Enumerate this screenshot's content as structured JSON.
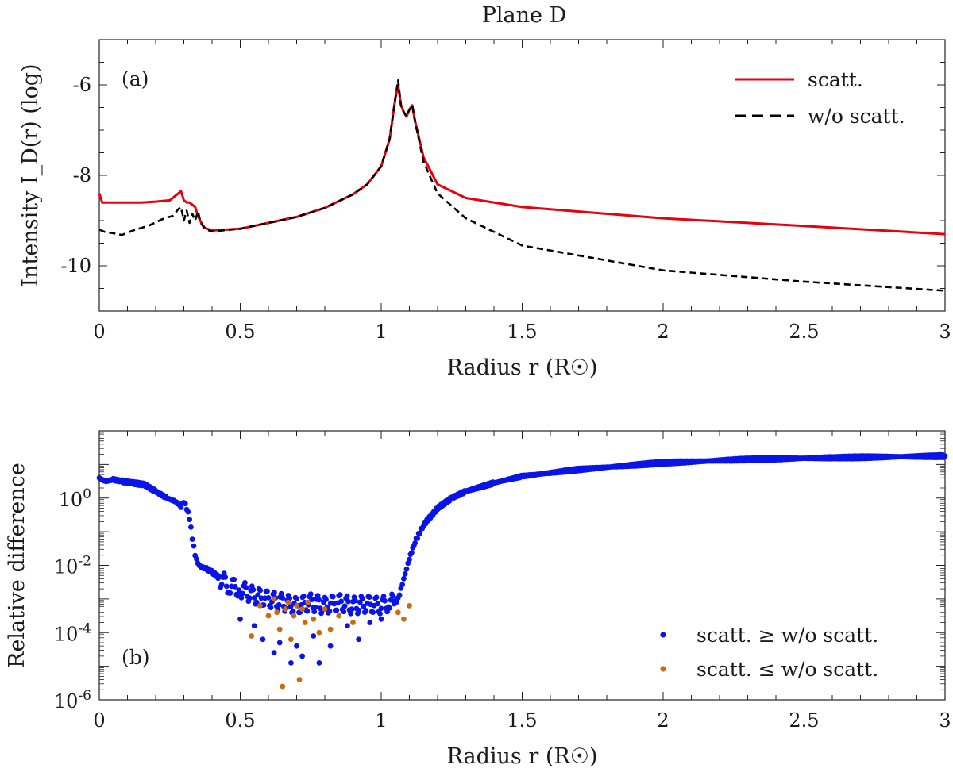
{
  "figure_title": "Plane D",
  "chart_data": [
    {
      "type": "line",
      "panel_label": "(a)",
      "xlabel": "Radius r (R☉)",
      "ylabel": "Intensity I_D(r) (log)",
      "xlim": [
        0,
        3
      ],
      "ylim": [
        -11,
        -5
      ],
      "x_ticks": [
        0,
        0.5,
        1,
        1.5,
        2,
        2.5,
        3
      ],
      "x_tick_labels": [
        "0",
        "0.5",
        "1",
        "1.5",
        "2",
        "2.5",
        "3"
      ],
      "y_ticks": [
        -10,
        -8,
        -6
      ],
      "y_tick_labels": [
        "-10",
        "-8",
        "-6"
      ],
      "legend_position": "top-right",
      "grid": false,
      "series": [
        {
          "name": "scatt.",
          "color": "#e8000b",
          "style": "solid",
          "x": [
            0,
            0.01,
            0.05,
            0.1,
            0.15,
            0.2,
            0.25,
            0.28,
            0.29,
            0.3,
            0.31,
            0.32,
            0.33,
            0.34,
            0.35,
            0.37,
            0.4,
            0.5,
            0.6,
            0.7,
            0.8,
            0.9,
            0.95,
            1.0,
            1.03,
            1.05,
            1.06,
            1.07,
            1.08,
            1.09,
            1.1,
            1.11,
            1.12,
            1.15,
            1.2,
            1.3,
            1.5,
            2.0,
            2.5,
            3.0
          ],
          "y": [
            -8.4,
            -8.6,
            -8.6,
            -8.6,
            -8.6,
            -8.58,
            -8.55,
            -8.4,
            -8.35,
            -8.55,
            -8.6,
            -8.6,
            -8.65,
            -8.7,
            -8.9,
            -9.15,
            -9.22,
            -9.18,
            -9.05,
            -8.92,
            -8.72,
            -8.42,
            -8.2,
            -7.8,
            -7.2,
            -6.3,
            -6.0,
            -6.45,
            -6.6,
            -6.7,
            -6.55,
            -6.45,
            -6.8,
            -7.6,
            -8.2,
            -8.5,
            -8.7,
            -8.95,
            -9.12,
            -9.3
          ]
        },
        {
          "name": "w/o scatt.",
          "color": "#000000",
          "style": "dashed",
          "x": [
            0,
            0.02,
            0.05,
            0.08,
            0.12,
            0.18,
            0.23,
            0.26,
            0.28,
            0.29,
            0.3,
            0.31,
            0.32,
            0.33,
            0.34,
            0.35,
            0.36,
            0.38,
            0.4,
            0.5,
            0.6,
            0.7,
            0.8,
            0.9,
            0.95,
            1.0,
            1.03,
            1.05,
            1.06,
            1.07,
            1.08,
            1.09,
            1.1,
            1.11,
            1.12,
            1.15,
            1.2,
            1.3,
            1.5,
            2.0,
            2.5,
            3.0
          ],
          "y": [
            -9.2,
            -9.25,
            -9.28,
            -9.32,
            -9.22,
            -9.1,
            -8.95,
            -8.9,
            -8.75,
            -8.7,
            -9.0,
            -8.78,
            -9.05,
            -8.85,
            -9.0,
            -8.8,
            -9.05,
            -9.2,
            -9.24,
            -9.18,
            -9.05,
            -8.92,
            -8.72,
            -8.42,
            -8.2,
            -7.8,
            -7.2,
            -6.3,
            -5.9,
            -6.45,
            -6.6,
            -6.7,
            -6.55,
            -6.45,
            -6.8,
            -7.7,
            -8.4,
            -8.95,
            -9.55,
            -10.1,
            -10.35,
            -10.55
          ]
        }
      ]
    },
    {
      "type": "scatter",
      "panel_label": "(b)",
      "xlabel": "Radius r (R☉)",
      "ylabel": "Relative difference",
      "xlim": [
        0,
        3
      ],
      "ylim_exponent": [
        -6,
        2
      ],
      "y_scale": "log",
      "x_ticks": [
        0,
        0.5,
        1,
        1.5,
        2,
        2.5,
        3
      ],
      "x_tick_labels": [
        "0",
        "0.5",
        "1",
        "1.5",
        "2",
        "2.5",
        "3"
      ],
      "y_ticks_exponent": [
        -6,
        -4,
        -2,
        0
      ],
      "y_tick_base": "10",
      "y_tick_exponents": [
        "-6",
        "-4",
        "-2",
        "0"
      ],
      "legend_position": "bottom-right",
      "grid": false,
      "series": [
        {
          "name": "scatt. ≥ w/o scatt.",
          "color": "#0a14e6",
          "x": [
            0.0,
            0.02,
            0.05,
            0.08,
            0.12,
            0.16,
            0.2,
            0.24,
            0.27,
            0.29,
            0.3,
            0.31,
            0.32,
            0.33,
            0.34,
            0.35,
            0.36,
            0.38,
            0.4,
            0.43,
            0.46,
            0.5,
            0.55,
            0.6,
            0.65,
            0.7,
            0.75,
            0.8,
            0.85,
            0.9,
            0.95,
            1.0,
            1.03,
            1.05,
            1.06,
            1.07,
            1.08,
            1.09,
            1.1,
            1.12,
            1.15,
            1.2,
            1.25,
            1.3,
            1.4,
            1.5,
            1.7,
            2.0,
            2.3,
            2.6,
            3.0
          ],
          "y_exponent": [
            0.6,
            0.5,
            0.55,
            0.5,
            0.45,
            0.4,
            0.2,
            0.0,
            -0.1,
            -0.25,
            -0.1,
            -0.3,
            -0.6,
            -1.2,
            -1.7,
            -1.95,
            -2.05,
            -2.1,
            -2.2,
            -2.4,
            -2.6,
            -2.7,
            -2.9,
            -3.0,
            -3.1,
            -3.2,
            -3.1,
            -3.2,
            -3.1,
            -3.2,
            -3.15,
            -3.2,
            -3.1,
            -3.1,
            -3.0,
            -2.7,
            -2.4,
            -2.1,
            -1.8,
            -1.3,
            -0.8,
            -0.3,
            0.0,
            0.2,
            0.45,
            0.65,
            0.85,
            1.05,
            1.15,
            1.2,
            1.25
          ],
          "outliers_x": [
            0.5,
            0.55,
            0.58,
            0.62,
            0.64,
            0.68,
            0.7,
            0.72,
            0.76,
            0.78,
            0.82,
            0.88,
            0.92,
            0.96,
            1.0
          ],
          "outliers_y_exponent": [
            -3.6,
            -3.8,
            -4.2,
            -4.6,
            -4.3,
            -4.9,
            -4.4,
            -4.7,
            -4.1,
            -4.9,
            -4.4,
            -3.8,
            -4.2,
            -3.7,
            -3.6
          ]
        },
        {
          "name": "scatt. ≤ w/o scatt.",
          "color": "#cc6a12",
          "x": [
            0.54,
            0.57,
            0.6,
            0.62,
            0.63,
            0.64,
            0.65,
            0.66,
            0.67,
            0.68,
            0.69,
            0.7,
            0.71,
            0.72,
            0.73,
            0.74,
            0.76,
            0.78,
            0.8,
            0.82,
            0.85,
            0.9,
            1.06,
            1.08,
            1.1
          ],
          "y_exponent": [
            -4.1,
            -3.2,
            -3.5,
            -3.0,
            -3.4,
            -3.9,
            -5.6,
            -3.3,
            -3.1,
            -4.2,
            -3.5,
            -3.2,
            -5.4,
            -3.3,
            -3.7,
            -3.1,
            -3.6,
            -4.0,
            -3.3,
            -3.9,
            -3.5,
            -3.7,
            -3.4,
            -3.6,
            -3.2
          ]
        }
      ]
    }
  ]
}
